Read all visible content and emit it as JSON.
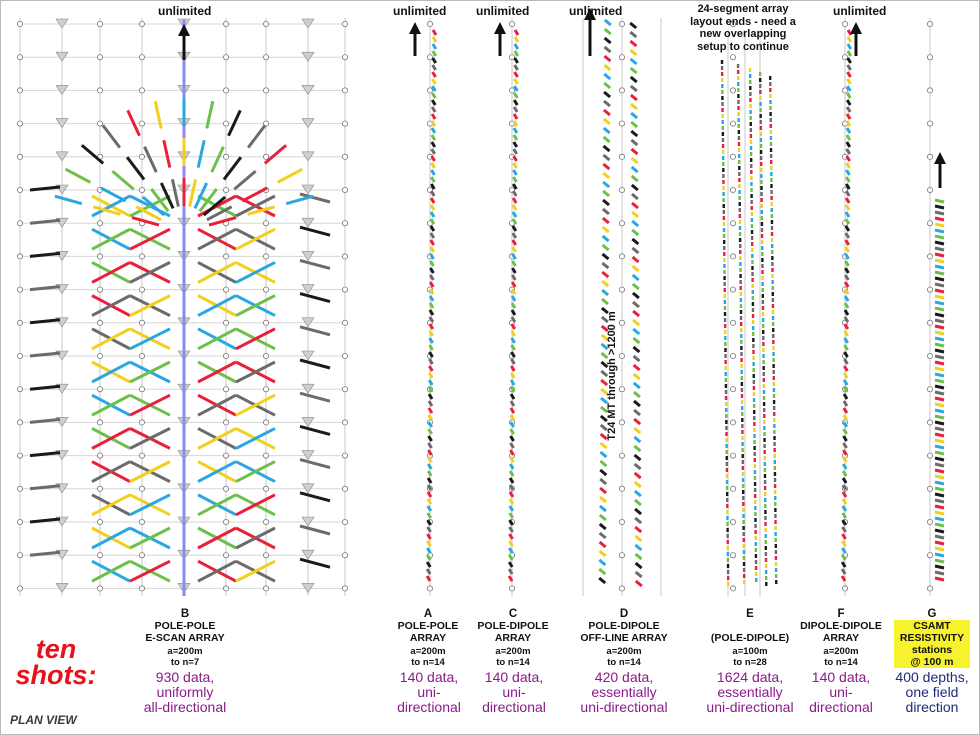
{
  "colors": {
    "red": "#e8203a",
    "yellow": "#f2cf1a",
    "blue": "#2aa7e0",
    "green": "#6cc04a",
    "black": "#1a1a1a",
    "gray": "#6b6b6b",
    "purple": "#8a6fd0",
    "orange": "#f07a18",
    "title_red": "#e8101a",
    "summary_purple": "#8b1a8b",
    "summary_navy": "#1e2a7a",
    "highlight": "#f6f32e"
  },
  "header": {
    "unlimited_label": "unlimited",
    "note": "24-segment array layout ends - need a new overlapping setup to continue",
    "side_note": "T24 MT through >1200 m"
  },
  "footer": {
    "title": "ten shots:",
    "plan_view": "PLAN VIEW"
  },
  "arrays": [
    {
      "id": "B",
      "letter": "B",
      "name_line1": "POLE-POLE",
      "name_line2": "E-SCAN ARRAY",
      "spacing": "a=200m",
      "depth": "to n=7",
      "sum1": "930 data,",
      "sum2": "uniformly",
      "sum3": "all-directional"
    },
    {
      "id": "A",
      "letter": "A",
      "name_line1": "POLE-POLE",
      "name_line2": "ARRAY",
      "spacing": "a=200m",
      "depth": "to n=14",
      "sum1": "140 data,",
      "sum2": "uni-",
      "sum3": "directional"
    },
    {
      "id": "C",
      "letter": "C",
      "name_line1": "POLE-DIPOLE",
      "name_line2": "ARRAY",
      "spacing": "a=200m",
      "depth": "to n=14",
      "sum1": "140 data,",
      "sum2": "uni-",
      "sum3": "directional"
    },
    {
      "id": "D",
      "letter": "D",
      "name_line1": "POLE-DIPOLE",
      "name_line2": "OFF-LINE ARRAY",
      "spacing": "a=200m",
      "depth": "to n=14",
      "sum1": "420 data,",
      "sum2": "essentially",
      "sum3": "uni-directional"
    },
    {
      "id": "E",
      "letter": "E",
      "name_line1": "(POLE-DIPOLE)",
      "name_line2": "",
      "spacing": "a=100m",
      "depth": "to n=28",
      "sum1": "1624 data,",
      "sum2": "essentially",
      "sum3": "uni-directional"
    },
    {
      "id": "F",
      "letter": "F",
      "name_line1": "DIPOLE-DIPOLE",
      "name_line2": "ARRAY",
      "spacing": "a=200m",
      "depth": "to n=14",
      "sum1": "140 data,",
      "sum2": "uni-",
      "sum3": "directional"
    },
    {
      "id": "G",
      "letter": "G",
      "name_line1": "CSAMT",
      "name_line2": "RESISTIVITY",
      "name_line3": "stations",
      "name_line4": "@ 100 m",
      "sum1": "400 depths,",
      "sum2": "one field",
      "sum3": "direction"
    }
  ]
}
